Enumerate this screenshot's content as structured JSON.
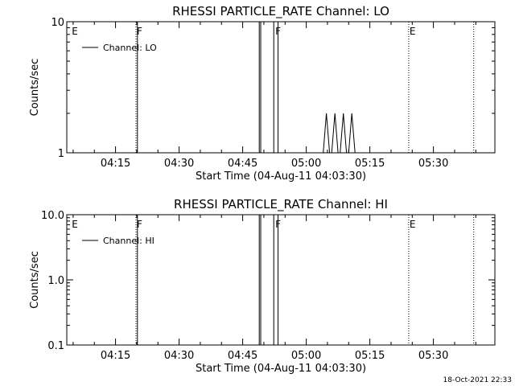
{
  "footer": {
    "timestamp": "18-Oct-2021 22:33"
  },
  "chart_data": [
    {
      "type": "line",
      "title": "RHESSI PARTICLE_RATE Channel: LO",
      "xlabel": "Start Time (04-Aug-11 04:03:30)",
      "ylabel": "Counts/sec",
      "y_scale": "log",
      "ylim": [
        1,
        10
      ],
      "y_ticks": [
        {
          "value": 1,
          "label": "1"
        },
        {
          "value": 10,
          "label": "10"
        }
      ],
      "xlim": [
        "04:03:30",
        "05:44:30"
      ],
      "x_ticks": [
        "04:15",
        "04:30",
        "04:45",
        "05:00",
        "05:15",
        "05:30"
      ],
      "legend": {
        "location": "top-left",
        "entries": [
          "Channel: LO"
        ]
      },
      "series": [
        {
          "name": "Channel: LO",
          "points": [
            {
              "t": "04:03:30",
              "v": 1
            },
            {
              "t": "04:48:55",
              "v": 1
            },
            {
              "t": "04:48:55",
              "v": 10
            },
            {
              "t": "04:49:15",
              "v": 10
            },
            {
              "t": "04:49:15",
              "v": 1
            },
            {
              "t": "04:52:20",
              "v": 1
            },
            {
              "t": "04:52:20",
              "v": 10
            },
            {
              "t": "04:53:20",
              "v": 10
            },
            {
              "t": "04:53:20",
              "v": 1
            },
            {
              "t": "05:04:00",
              "v": 1
            },
            {
              "t": "05:04:45",
              "v": 2
            },
            {
              "t": "05:05:30",
              "v": 1
            },
            {
              "t": "05:06:00",
              "v": 1
            },
            {
              "t": "05:06:45",
              "v": 2
            },
            {
              "t": "05:07:30",
              "v": 1
            },
            {
              "t": "05:08:00",
              "v": 1
            },
            {
              "t": "05:08:45",
              "v": 2
            },
            {
              "t": "05:09:30",
              "v": 1
            },
            {
              "t": "05:10:00",
              "v": 1
            },
            {
              "t": "05:10:45",
              "v": 2
            },
            {
              "t": "05:11:30",
              "v": 1
            },
            {
              "t": "05:44:30",
              "v": 1
            }
          ]
        }
      ],
      "markers": [
        {
          "t": "04:04:30",
          "label": "E",
          "line": false
        },
        {
          "t": "04:19:50",
          "label": "F",
          "line": "dotted"
        },
        {
          "t": "04:20:10",
          "label": "",
          "line": "solid"
        },
        {
          "t": "04:52:30",
          "label": "F",
          "line": false
        },
        {
          "t": "05:24:10",
          "label": "E",
          "line": "dotted"
        },
        {
          "t": "05:39:30",
          "label": "",
          "line": "dotted"
        }
      ]
    },
    {
      "type": "line",
      "title": "RHESSI PARTICLE_RATE Channel: HI",
      "xlabel": "Start Time (04-Aug-11 04:03:30)",
      "ylabel": "Counts/sec",
      "y_scale": "log",
      "ylim": [
        0.1,
        10
      ],
      "y_ticks": [
        {
          "value": 0.1,
          "label": "0.1"
        },
        {
          "value": 1,
          "label": "1.0"
        },
        {
          "value": 10,
          "label": "10.0"
        }
      ],
      "xlim": [
        "04:03:30",
        "05:44:30"
      ],
      "x_ticks": [
        "04:15",
        "04:30",
        "04:45",
        "05:00",
        "05:15",
        "05:30"
      ],
      "legend": {
        "location": "top-left",
        "entries": [
          "Channel: HI"
        ]
      },
      "series": [
        {
          "name": "Channel: HI",
          "points": [
            {
              "t": "04:03:30",
              "v": 0.1
            },
            {
              "t": "04:48:55",
              "v": 0.1
            },
            {
              "t": "04:48:55",
              "v": 10
            },
            {
              "t": "04:49:15",
              "v": 10
            },
            {
              "t": "04:49:15",
              "v": 0.1
            },
            {
              "t": "04:52:20",
              "v": 0.1
            },
            {
              "t": "04:52:20",
              "v": 10
            },
            {
              "t": "04:53:20",
              "v": 10
            },
            {
              "t": "04:53:20",
              "v": 0.1
            },
            {
              "t": "05:44:30",
              "v": 0.1
            }
          ]
        }
      ],
      "markers": [
        {
          "t": "04:04:30",
          "label": "E",
          "line": false
        },
        {
          "t": "04:19:50",
          "label": "F",
          "line": "dotted"
        },
        {
          "t": "04:20:10",
          "label": "",
          "line": "solid"
        },
        {
          "t": "04:52:30",
          "label": "F",
          "line": false
        },
        {
          "t": "05:24:10",
          "label": "E",
          "line": "dotted"
        },
        {
          "t": "05:39:30",
          "label": "",
          "line": "dotted"
        }
      ]
    }
  ]
}
